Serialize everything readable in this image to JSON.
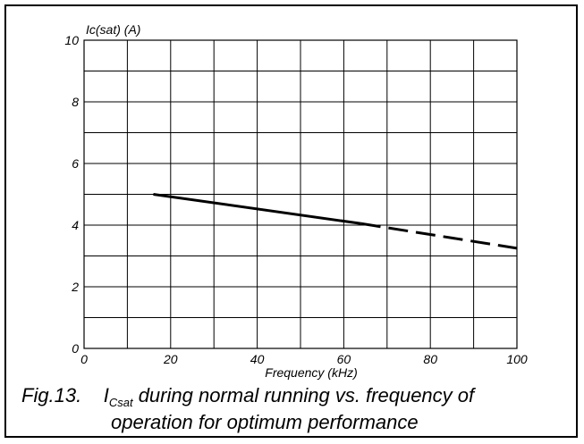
{
  "chart_data": {
    "type": "line",
    "ylabel": "Ic(sat) (A)",
    "xlabel": "Frequency (kHz)",
    "xlim": [
      0,
      100
    ],
    "ylim": [
      0,
      10
    ],
    "x_ticks": [
      "0",
      "20",
      "40",
      "60",
      "80",
      "100"
    ],
    "y_ticks": [
      "0",
      "2",
      "4",
      "6",
      "8",
      "10"
    ],
    "grid": true,
    "series": [
      {
        "style": "solid",
        "x": [
          16,
          64
        ],
        "y": [
          5.0,
          4.05
        ]
      },
      {
        "style": "dashed",
        "x": [
          64,
          100
        ],
        "y": [
          4.05,
          3.25
        ]
      }
    ]
  },
  "caption": {
    "fig": "Fig.13.",
    "symbol": "I",
    "subscript": "Csat",
    "line1_rest": " during normal running vs. frequency of",
    "line2": "operation for optimum performance"
  }
}
